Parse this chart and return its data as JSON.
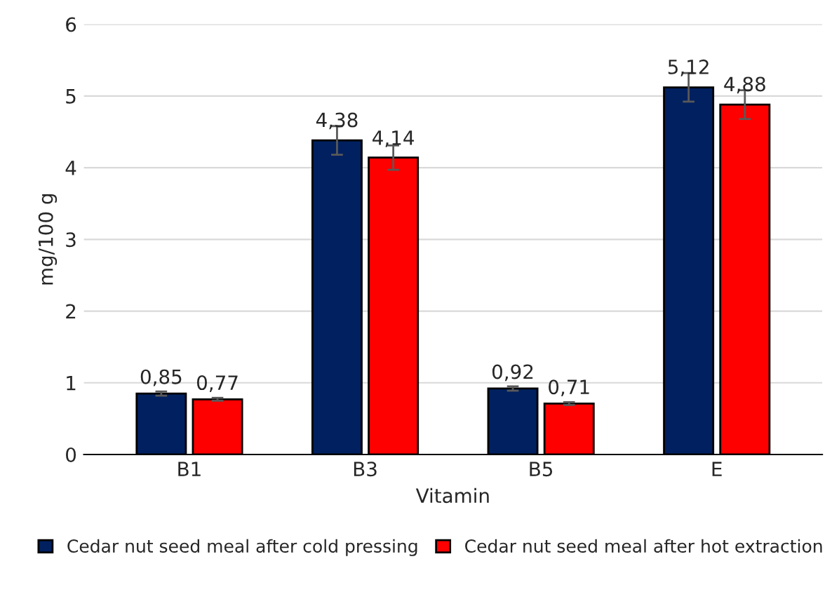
{
  "chart_data": {
    "type": "bar",
    "xlabel": "Vitamin",
    "ylabel": "mg/100 g",
    "categories": [
      "B1",
      "B3",
      "B5",
      "E"
    ],
    "series": [
      {
        "name": "Cedar nut seed meal after cold pressing",
        "color": "#002060",
        "values": [
          0.85,
          4.38,
          0.92,
          5.12
        ],
        "errors": [
          0.03,
          0.2,
          0.03,
          0.2
        ],
        "value_labels": [
          "0,85",
          "4,38",
          "0,92",
          "5,12"
        ]
      },
      {
        "name": "Cedar nut seed meal after hot extraction",
        "color": "#ff0000",
        "values": [
          0.77,
          4.14,
          0.71,
          4.88
        ],
        "errors": [
          0.02,
          0.17,
          0.02,
          0.2
        ],
        "value_labels": [
          "0,77",
          "4,14",
          "0,71",
          "4,88"
        ]
      }
    ],
    "ylim": [
      0,
      6
    ],
    "yticks": [
      0,
      1,
      2,
      3,
      4,
      5,
      6
    ],
    "grid": "y",
    "legend": "bottom"
  }
}
